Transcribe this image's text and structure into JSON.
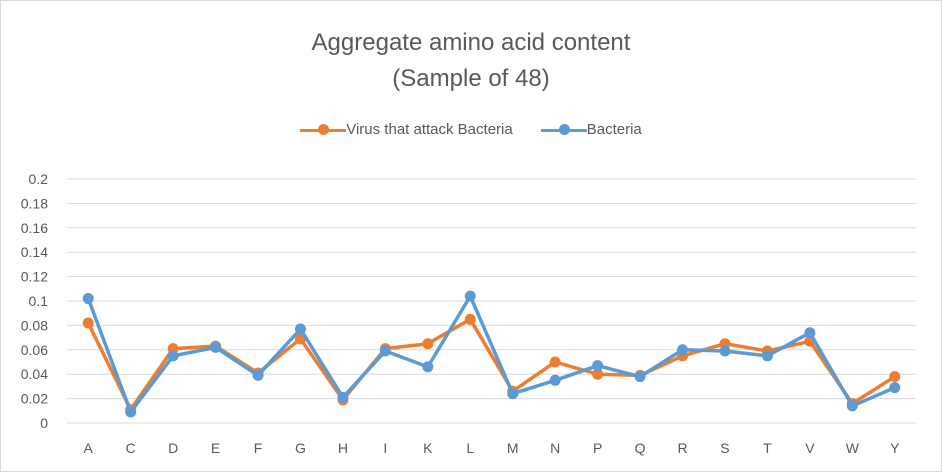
{
  "chart_data": {
    "type": "line",
    "title": "Aggregate amino acid content",
    "subtitle": "(Sample of 48)",
    "categories": [
      "A",
      "C",
      "D",
      "E",
      "F",
      "G",
      "H",
      "I",
      "K",
      "L",
      "M",
      "N",
      "P",
      "Q",
      "R",
      "S",
      "T",
      "V",
      "W",
      "Y"
    ],
    "series": [
      {
        "name": "Virus that attack Bacteria",
        "color": "#ed7d31",
        "values": [
          0.082,
          0.011,
          0.061,
          0.063,
          0.041,
          0.069,
          0.019,
          0.061,
          0.065,
          0.085,
          0.026,
          0.05,
          0.04,
          0.039,
          0.055,
          0.065,
          0.059,
          0.067,
          0.016,
          0.038
        ]
      },
      {
        "name": "Bacteria",
        "color": "#5b9bd5",
        "values": [
          0.102,
          0.009,
          0.055,
          0.062,
          0.039,
          0.077,
          0.021,
          0.059,
          0.046,
          0.104,
          0.024,
          0.035,
          0.047,
          0.038,
          0.06,
          0.059,
          0.055,
          0.074,
          0.014,
          0.029
        ]
      }
    ],
    "ylim": [
      0,
      0.2
    ],
    "yticks": [
      "0",
      "0.02",
      "0.04",
      "0.06",
      "0.08",
      "0.1",
      "0.12",
      "0.14",
      "0.16",
      "0.18",
      "0.2"
    ],
    "legend_position": "top",
    "grid": true,
    "gridline_color": "#d9d9d9",
    "axis_text_color": "#595959"
  }
}
